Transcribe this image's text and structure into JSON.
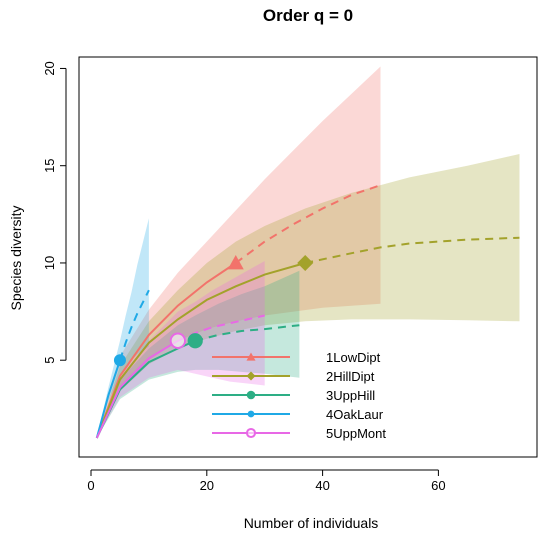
{
  "chart_data": {
    "type": "line",
    "title": "Order q = 0",
    "xlabel": "Number of individuals",
    "ylabel": "Species diversity",
    "xlim": [
      0,
      75
    ],
    "ylim": [
      0,
      21
    ],
    "xticks": [
      0,
      20,
      40,
      60
    ],
    "yticks": [
      5,
      10,
      15,
      20
    ],
    "grid": false,
    "legend_position": "bottom-center",
    "series": [
      {
        "name": "1LowDipt",
        "color": "#f2736b",
        "marker": "triangle",
        "observed": {
          "x": 25,
          "y": 10
        },
        "interpolated": [
          [
            1,
            1
          ],
          [
            5,
            4.2
          ],
          [
            10,
            6.3
          ],
          [
            15,
            7.8
          ],
          [
            20,
            9.0
          ],
          [
            25,
            10
          ]
        ],
        "extrapolated": [
          [
            25,
            10
          ],
          [
            30,
            11.1
          ],
          [
            35,
            12.0
          ],
          [
            40,
            12.8
          ],
          [
            45,
            13.5
          ],
          [
            50,
            14
          ]
        ],
        "ci_lower": [
          [
            1,
            1
          ],
          [
            5,
            3.5
          ],
          [
            10,
            5.0
          ],
          [
            15,
            6.0
          ],
          [
            20,
            6.6
          ],
          [
            25,
            7.0
          ],
          [
            30,
            7.3
          ],
          [
            35,
            7.5
          ],
          [
            40,
            7.7
          ],
          [
            45,
            7.8
          ],
          [
            50,
            7.9
          ]
        ],
        "ci_upper": [
          [
            1,
            1
          ],
          [
            5,
            5.2
          ],
          [
            10,
            7.6
          ],
          [
            15,
            9.5
          ],
          [
            20,
            11.1
          ],
          [
            25,
            12.7
          ],
          [
            30,
            14.3
          ],
          [
            35,
            15.8
          ],
          [
            40,
            17.3
          ],
          [
            45,
            18.7
          ],
          [
            50,
            20.1
          ]
        ]
      },
      {
        "name": "2HillDipt",
        "color": "#a3a22b",
        "marker": "diamond",
        "observed": {
          "x": 37,
          "y": 10
        },
        "interpolated": [
          [
            1,
            1
          ],
          [
            5,
            4.0
          ],
          [
            10,
            5.9
          ],
          [
            15,
            7.1
          ],
          [
            20,
            8.1
          ],
          [
            25,
            8.8
          ],
          [
            30,
            9.4
          ],
          [
            37,
            10
          ]
        ],
        "extrapolated": [
          [
            37,
            10
          ],
          [
            45,
            10.5
          ],
          [
            50,
            10.8
          ],
          [
            55,
            11.0
          ],
          [
            60,
            11.1
          ],
          [
            65,
            11.2
          ],
          [
            70,
            11.25
          ],
          [
            74,
            11.3
          ]
        ],
        "ci_lower": [
          [
            1,
            1
          ],
          [
            5,
            3.4
          ],
          [
            10,
            4.8
          ],
          [
            15,
            5.6
          ],
          [
            20,
            6.1
          ],
          [
            25,
            6.5
          ],
          [
            30,
            6.8
          ],
          [
            37,
            7.0
          ],
          [
            45,
            7.1
          ],
          [
            55,
            7.1
          ],
          [
            65,
            7.05
          ],
          [
            74,
            7.0
          ]
        ],
        "ci_upper": [
          [
            1,
            1
          ],
          [
            5,
            4.7
          ],
          [
            10,
            7.0
          ],
          [
            15,
            8.6
          ],
          [
            20,
            10.0
          ],
          [
            25,
            11.1
          ],
          [
            30,
            11.9
          ],
          [
            37,
            12.8
          ],
          [
            45,
            13.6
          ],
          [
            55,
            14.4
          ],
          [
            65,
            15.0
          ],
          [
            74,
            15.6
          ]
        ]
      },
      {
        "name": "3UppHill",
        "color": "#2dae85",
        "marker": "circle-filled",
        "observed": {
          "x": 18,
          "y": 6
        },
        "interpolated": [
          [
            1,
            1
          ],
          [
            5,
            3.5
          ],
          [
            10,
            4.9
          ],
          [
            15,
            5.6
          ],
          [
            18,
            6
          ]
        ],
        "extrapolated": [
          [
            18,
            6
          ],
          [
            22,
            6.3
          ],
          [
            26,
            6.5
          ],
          [
            30,
            6.6
          ],
          [
            33,
            6.7
          ],
          [
            36,
            6.8
          ]
        ],
        "ci_lower": [
          [
            1,
            1
          ],
          [
            5,
            3.0
          ],
          [
            10,
            4.0
          ],
          [
            15,
            4.4
          ],
          [
            18,
            4.5
          ],
          [
            22,
            4.5
          ],
          [
            26,
            4.4
          ],
          [
            30,
            4.3
          ],
          [
            33,
            4.2
          ],
          [
            36,
            4.1
          ]
        ],
        "ci_upper": [
          [
            1,
            1
          ],
          [
            5,
            4.0
          ],
          [
            10,
            5.6
          ],
          [
            15,
            6.8
          ],
          [
            18,
            7.3
          ],
          [
            22,
            7.9
          ],
          [
            26,
            8.4
          ],
          [
            30,
            8.8
          ],
          [
            33,
            9.2
          ],
          [
            36,
            9.6
          ]
        ]
      },
      {
        "name": "4OakLaur",
        "color": "#1fa9e6",
        "marker": "circle-small",
        "observed": {
          "x": 5,
          "y": 5
        },
        "interpolated": [
          [
            1,
            1
          ],
          [
            3,
            3.2
          ],
          [
            5,
            5
          ]
        ],
        "extrapolated": [
          [
            5,
            5
          ],
          [
            6,
            5.9
          ],
          [
            7,
            6.7
          ],
          [
            8,
            7.4
          ],
          [
            9,
            8.0
          ],
          [
            10,
            8.6
          ]
        ],
        "ci_lower": [
          [
            1,
            1
          ],
          [
            3,
            2.9
          ],
          [
            5,
            4.2
          ],
          [
            6,
            4.6
          ],
          [
            7,
            5.0
          ],
          [
            8,
            5.3
          ],
          [
            9,
            5.5
          ],
          [
            10,
            5.7
          ]
        ],
        "ci_upper": [
          [
            1,
            1
          ],
          [
            3,
            3.6
          ],
          [
            5,
            6.0
          ],
          [
            6,
            7.3
          ],
          [
            7,
            8.5
          ],
          [
            8,
            9.9
          ],
          [
            9,
            11.1
          ],
          [
            10,
            12.3
          ]
        ]
      },
      {
        "name": "5UppMont",
        "color": "#e868e6",
        "marker": "circle-open",
        "observed": {
          "x": 15,
          "y": 6
        },
        "interpolated": [
          [
            1,
            1
          ],
          [
            5,
            3.6
          ],
          [
            10,
            5.1
          ],
          [
            15,
            6
          ]
        ],
        "extrapolated": [
          [
            15,
            6
          ],
          [
            18,
            6.4
          ],
          [
            21,
            6.7
          ],
          [
            24,
            6.9
          ],
          [
            27,
            7.1
          ],
          [
            30,
            7.3
          ]
        ],
        "ci_lower": [
          [
            1,
            1
          ],
          [
            5,
            3.1
          ],
          [
            10,
            4.1
          ],
          [
            15,
            4.5
          ],
          [
            18,
            4.3
          ],
          [
            21,
            4.1
          ],
          [
            24,
            3.9
          ],
          [
            27,
            3.8
          ],
          [
            30,
            3.7
          ]
        ],
        "ci_upper": [
          [
            1,
            1
          ],
          [
            5,
            4.2
          ],
          [
            10,
            6.0
          ],
          [
            15,
            7.5
          ],
          [
            18,
            8.0
          ],
          [
            21,
            8.6
          ],
          [
            24,
            9.1
          ],
          [
            27,
            9.6
          ],
          [
            30,
            10.1
          ]
        ]
      }
    ]
  }
}
